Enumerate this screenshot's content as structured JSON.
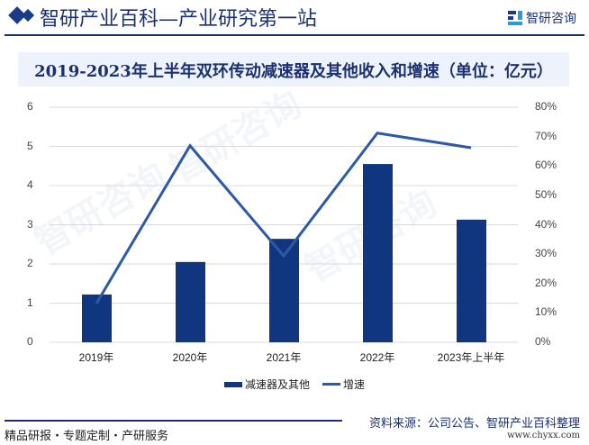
{
  "header": {
    "site_title": "智研产业百科—产业研究第一站",
    "brand": "智研咨询"
  },
  "chart_title": "2019-2023年上半年双环传动减速器及其他收入和增速（单位：亿元）",
  "chart_data": {
    "type": "bar",
    "title": "2019-2023年上半年双环传动减速器及其他收入和增速（单位：亿元）",
    "categories": [
      "2019年",
      "2020年",
      "2021年",
      "2022年",
      "2023年上半年"
    ],
    "series": [
      {
        "name": "减速器及其他",
        "type": "bar",
        "axis": "left",
        "color": "#10367f",
        "values": [
          1.22,
          2.05,
          2.64,
          4.55,
          3.13
        ]
      },
      {
        "name": "增速",
        "type": "line",
        "axis": "right",
        "color": "#2d5aa6",
        "values": [
          13.2,
          66.9,
          29.4,
          71.2,
          66.2
        ]
      }
    ],
    "left_axis": {
      "min": 0,
      "max": 6,
      "ticks": [
        "0",
        "1",
        "2",
        "3",
        "4",
        "5",
        "6"
      ]
    },
    "right_axis": {
      "min": 0,
      "max": 80,
      "ticks": [
        "0%",
        "10%",
        "20%",
        "30%",
        "40%",
        "50%",
        "60%",
        "70%",
        "80%"
      ]
    },
    "grid": true,
    "legend_position": "bottom"
  },
  "legend": {
    "bar_label": "减速器及其他",
    "line_label": "增速"
  },
  "footer": {
    "tagline": "精品研报・专题定制・产研服务",
    "source": "资料来源：公司公告、智研产业百科整理",
    "url": "www.chyxx.com"
  }
}
